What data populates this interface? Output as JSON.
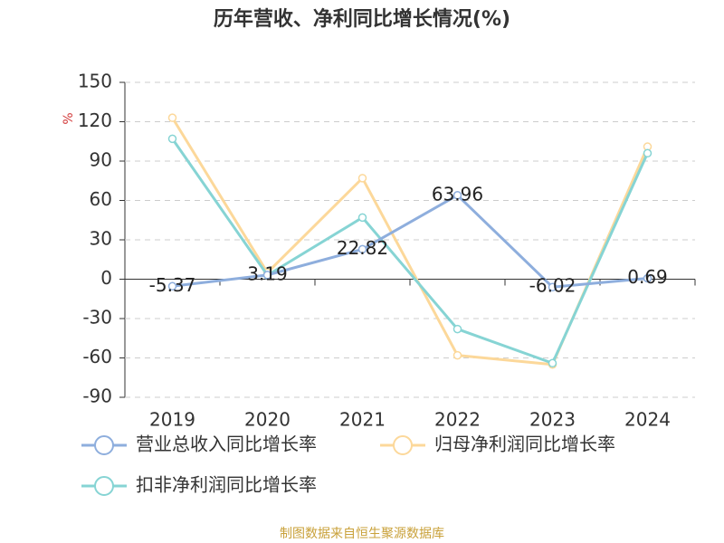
{
  "chart_data": {
    "type": "line",
    "title": "历年营收、净利同比增长情况(%)",
    "y_label": "%",
    "categories": [
      "2019",
      "2020",
      "2021",
      "2022",
      "2023",
      "2024"
    ],
    "series": [
      {
        "name": "营业总收入同比增长率",
        "color": "#8eaedd",
        "values": [
          -5.37,
          3.19,
          22.82,
          63.96,
          -6.02,
          0.69
        ],
        "show_labels": true
      },
      {
        "name": "归母净利润同比增长率",
        "color": "#fcd89a",
        "values": [
          123,
          5,
          77,
          -58,
          -65,
          101
        ],
        "show_labels": false
      },
      {
        "name": "扣非净利润同比增长率",
        "color": "#86d4d4",
        "values": [
          107,
          3,
          47,
          -38,
          -64,
          96
        ],
        "show_labels": false
      }
    ],
    "ylim": [
      -90,
      150
    ],
    "yticks": [
      -90,
      -60,
      -30,
      0,
      30,
      60,
      90,
      120,
      150
    ],
    "grid": true,
    "source": "制图数据来自恒生聚源数据库"
  }
}
